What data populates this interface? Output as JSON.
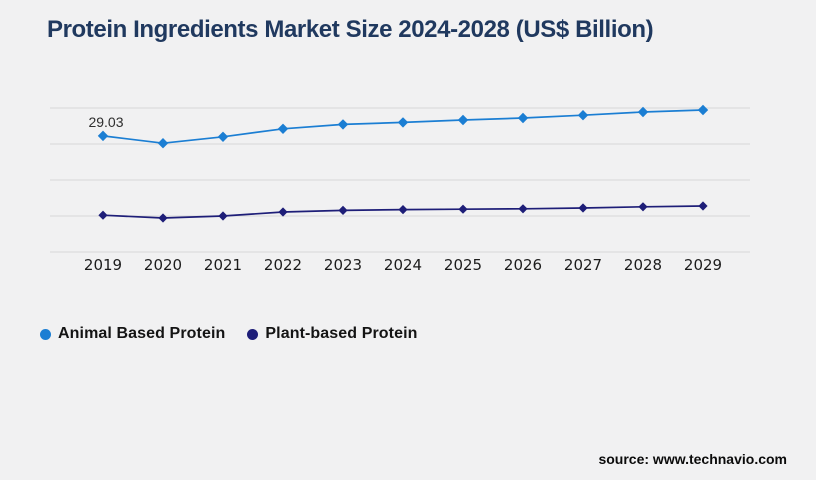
{
  "page": {
    "background_color": "#f1f1f2",
    "title_color": "#20395f",
    "gridline_color": "#d6d6d8"
  },
  "header": {
    "title": "Protein Ingredients Market Size 2024-2028 (US$ Billion)"
  },
  "chart_data": {
    "type": "line",
    "title": "Protein Ingredients Market Size 2024-2028 (US$ Billion)",
    "categories": [
      "2019",
      "2020",
      "2021",
      "2022",
      "2023",
      "2024",
      "2025",
      "2026",
      "2027",
      "2028",
      "2029"
    ],
    "series": [
      {
        "name": "Animal Based Protein",
        "color": "#1b7ed3",
        "marker": "diamond",
        "values": [
          29.03,
          27.2,
          28.8,
          30.8,
          31.9,
          32.4,
          33.0,
          33.5,
          34.2,
          35.0,
          35.5
        ]
      },
      {
        "name": "Plant-based Protein",
        "color": "#1e1e78",
        "marker": "diamond",
        "values": [
          9.2,
          8.5,
          9.0,
          10.0,
          10.4,
          10.6,
          10.7,
          10.8,
          11.0,
          11.3,
          11.5
        ]
      }
    ],
    "annotations": [
      {
        "text": "29.03",
        "series": "Animal Based Protein",
        "category": "2019"
      }
    ],
    "xlabel": "",
    "ylabel": "",
    "ylim": [
      0,
      36
    ],
    "y_axis_labels_visible": false,
    "grid": "horizontal",
    "legend_position": "bottom-left"
  },
  "footer": {
    "source": "source: www.technavio.com"
  }
}
